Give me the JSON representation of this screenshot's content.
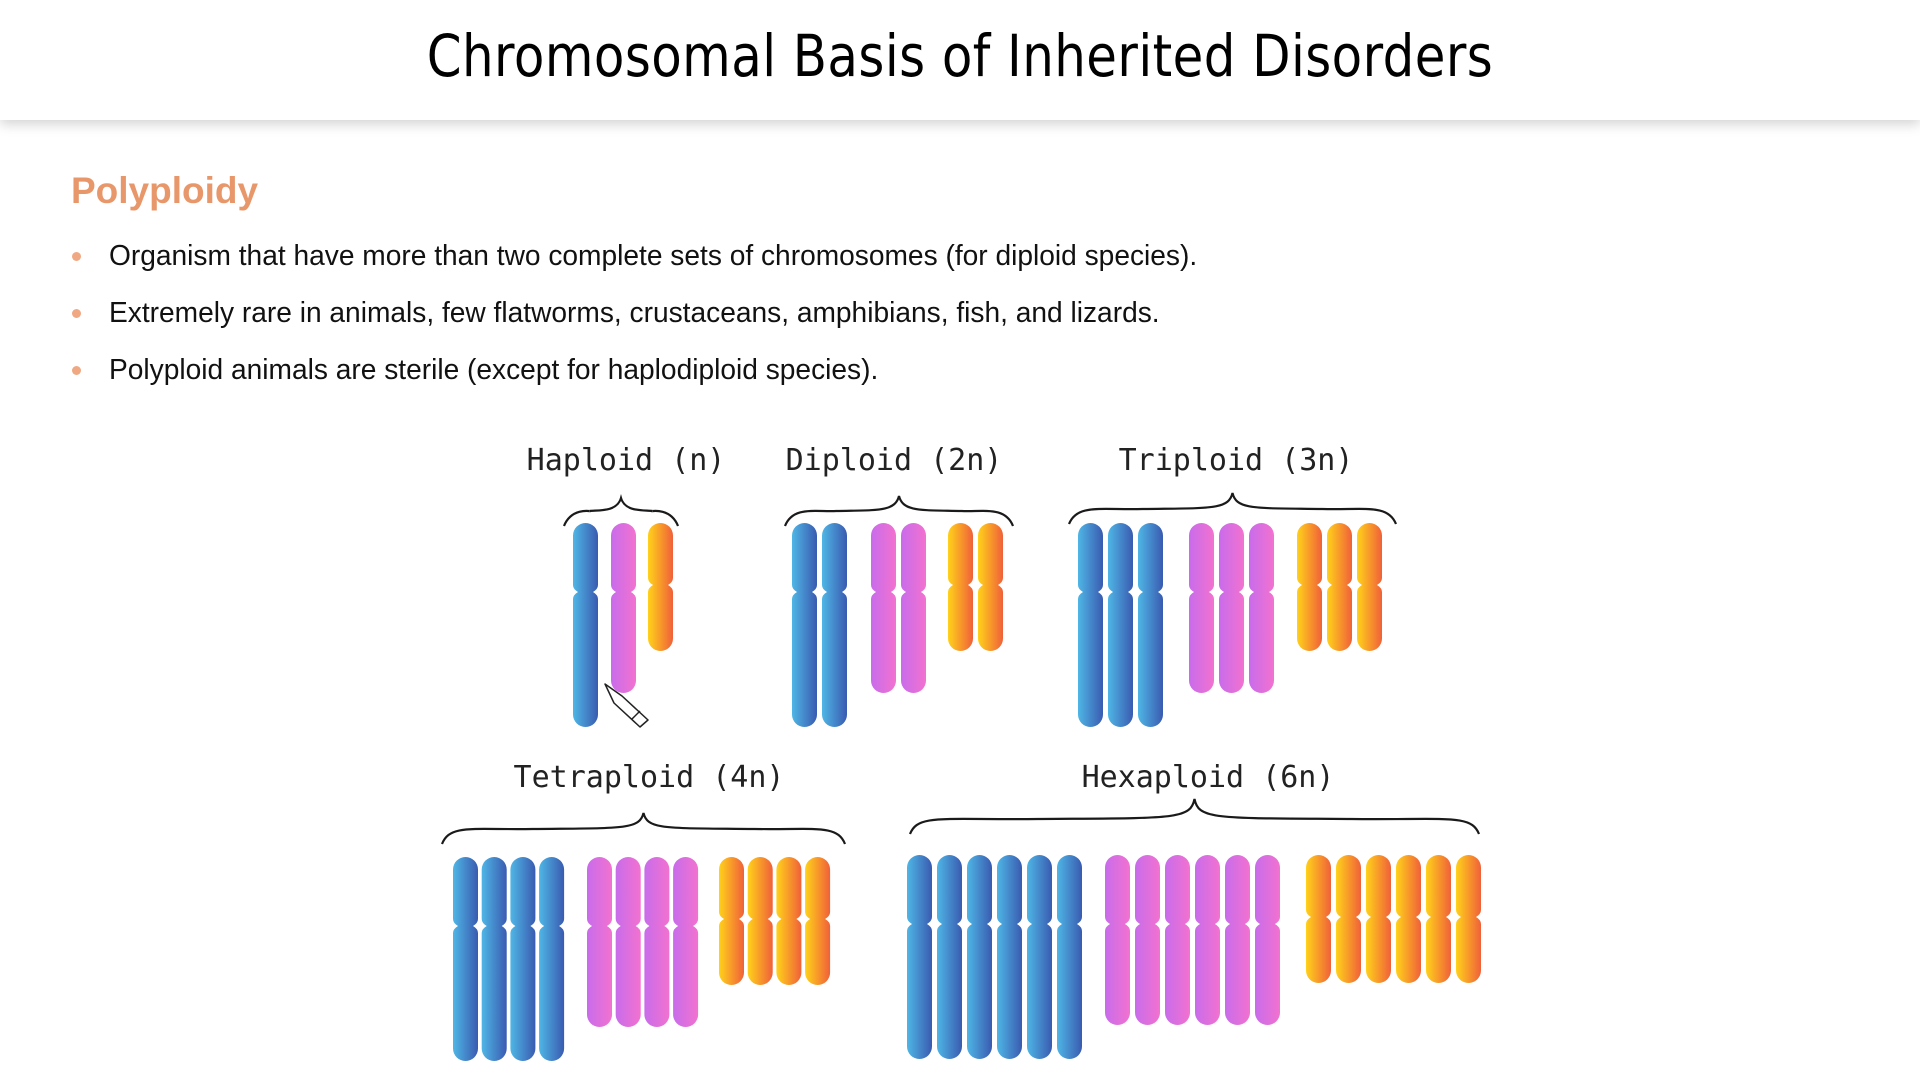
{
  "slide": {
    "title": "Chromosomal Basis of Inherited Disorders",
    "heading": "Polyploidy",
    "bullets": [
      "Organism that have more than two complete sets of chromosomes (for diploid species).",
      "Extremely rare in animals, few flatworms, crustaceans, amphibians, fish, and lizards.",
      "Polyploid animals are sterile (except for haplodiploid species)."
    ],
    "accent_color": "#E8976B"
  },
  "diagram": {
    "chromosome_types": [
      {
        "name": "long",
        "colors": [
          "#4FB6E6",
          "#3A5BB0"
        ]
      },
      {
        "name": "medium",
        "colors": [
          "#C86CEB",
          "#F272CF"
        ]
      },
      {
        "name": "short",
        "colors": [
          "#FFD21A",
          "#F0603A"
        ]
      }
    ],
    "groups": [
      {
        "label": "Haploid (n)",
        "copies": 1
      },
      {
        "label": "Diploid (2n)",
        "copies": 2
      },
      {
        "label": "Triploid (3n)",
        "copies": 3
      },
      {
        "label": "Tetraploid (4n)",
        "copies": 4
      },
      {
        "label": "Hexaploid (6n)",
        "copies": 6
      }
    ]
  },
  "overlay": {
    "cursor_icon": "pen-cursor-icon"
  }
}
